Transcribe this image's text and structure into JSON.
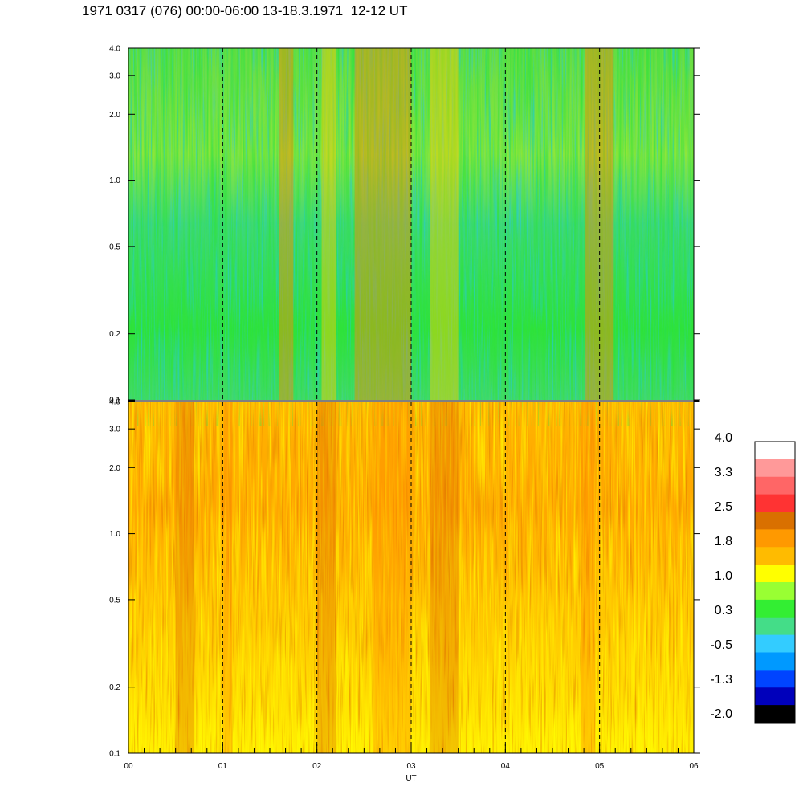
{
  "title": "1971 0317 (076) 00:00-06:00 13-18.3.1971  12-12 UT",
  "chart_data": [
    {
      "type": "heatmap",
      "panel": "top",
      "x_range": [
        0,
        6
      ],
      "y_range": [
        0.1,
        4.0
      ],
      "y_scale": "log",
      "y_tick_labels": [
        "0.1",
        "0.2",
        "0.5",
        "1.0",
        "2.0",
        "3.0",
        "4.0"
      ],
      "y_ticks": [
        0.1,
        0.2,
        0.5,
        1.0,
        2.0,
        3.0,
        4.0
      ],
      "vertical_markers_hours": [
        1,
        2,
        3,
        4,
        5
      ],
      "dominant_level": "0.3 to 1.0",
      "enhanced_intervals_hours": [
        [
          1.6,
          1.75
        ],
        [
          2.05,
          2.2
        ],
        [
          2.4,
          3.0
        ],
        [
          3.2,
          3.5
        ],
        [
          4.85,
          5.15
        ]
      ]
    },
    {
      "type": "heatmap",
      "panel": "bottom",
      "x_range": [
        0,
        6
      ],
      "y_range": [
        0.1,
        4.0
      ],
      "y_scale": "log",
      "y_tick_labels": [
        "0.1",
        "0.2",
        "0.5",
        "1.0",
        "2.0",
        "3.0",
        "4.0"
      ],
      "y_ticks": [
        0.1,
        0.2,
        0.5,
        1.0,
        2.0,
        3.0,
        4.0
      ],
      "vertical_markers_hours": [
        1,
        2,
        3,
        4,
        5
      ],
      "dominant_level": "1.0 to 2.5",
      "enhanced_intervals_hours": [
        [
          0.5,
          0.7
        ],
        [
          1.0,
          1.1
        ],
        [
          2.0,
          2.2
        ],
        [
          2.6,
          3.0
        ],
        [
          3.2,
          3.5
        ],
        [
          4.8,
          4.95
        ]
      ]
    }
  ],
  "x_axis": {
    "label": "UT",
    "tick_labels": [
      "00",
      "01",
      "02",
      "03",
      "04",
      "05",
      "06"
    ],
    "tick_values": [
      0,
      1,
      2,
      3,
      4,
      5,
      6
    ]
  },
  "colorbar": {
    "labels": [
      "4.0",
      "3.3",
      "2.5",
      "1.8",
      "1.0",
      "0.3",
      "-0.5",
      "-1.3",
      "-2.0"
    ],
    "min": -2.0,
    "max": 4.0,
    "colors": [
      "#ffffff",
      "#ff9999",
      "#ff6666",
      "#ff3333",
      "#d97000",
      "#ff9900",
      "#ffbb00",
      "#ffff00",
      "#99ff33",
      "#33ee33",
      "#44dd88",
      "#33ccff",
      "#0099ff",
      "#0044ff",
      "#0000bb",
      "#000000"
    ]
  }
}
